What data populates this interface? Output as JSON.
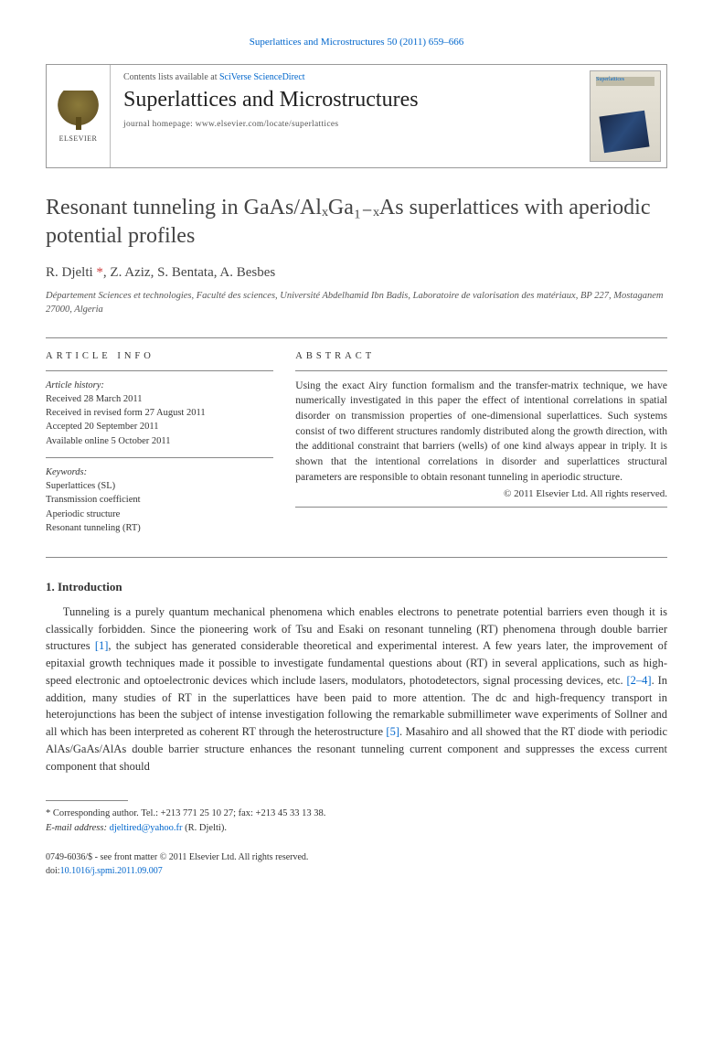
{
  "header": {
    "citation": "Superlattices and Microstructures 50 (2011) 659–666"
  },
  "banner": {
    "publisher_label": "ELSEVIER",
    "contents_prefix": "Contents lists available at ",
    "contents_link": "SciVerse ScienceDirect",
    "journal_name": "Superlattices and Microstructures",
    "homepage_line": "journal homepage: www.elsevier.com/locate/superlattices",
    "cover_thumb_text": "Superlattices"
  },
  "article": {
    "title_html": "Resonant tunneling in GaAs/AlₓGa₁₋ₓAs superlattices with aperiodic potential profiles",
    "authors_line": "R. Djelti *, Z. Aziz, S. Bentata, A. Besbes",
    "affiliation": "Département Sciences et technologies, Faculté des sciences, Université Abdelhamid Ibn Badis, Laboratoire de valorisation des matériaux, BP 227, Mostaganem 27000, Algeria"
  },
  "article_info": {
    "heading": "ARTICLE INFO",
    "history_label": "Article history:",
    "received": "Received 28 March 2011",
    "revised": "Received in revised form 27 August 2011",
    "accepted": "Accepted 20 September 2011",
    "online": "Available online 5 October 2011",
    "keywords_label": "Keywords:",
    "keywords": [
      "Superlattices (SL)",
      "Transmission coefficient",
      "Aperiodic structure",
      "Resonant tunneling (RT)"
    ]
  },
  "abstract": {
    "heading": "ABSTRACT",
    "text": "Using the exact Airy function formalism and the transfer-matrix technique, we have numerically investigated in this paper the effect of intentional correlations in spatial disorder on transmission properties of one-dimensional superlattices. Such systems consist of two different structures randomly distributed along the growth direction, with the additional constraint that barriers (wells) of one kind always appear in triply. It is shown that the intentional correlations in disorder and superlattices structural parameters are responsible to obtain resonant tunneling in aperiodic structure.",
    "copyright": "© 2011 Elsevier Ltd. All rights reserved."
  },
  "body": {
    "intro_heading": "1. Introduction",
    "intro_text_pre_ref1": "Tunneling is a purely quantum mechanical phenomena which enables electrons to penetrate potential barriers even though it is classically forbidden. Since the pioneering work of Tsu and Esaki on resonant tunneling (RT) phenomena through double barrier structures ",
    "ref1": "[1]",
    "intro_text_mid1": ", the subject has generated considerable theoretical and experimental interest. A few years later, the improvement of epitaxial growth techniques made it possible to investigate fundamental questions about (RT) in several applications, such as high-speed electronic and optoelectronic devices which include lasers, modulators, photodetectors, signal processing devices, etc. ",
    "ref2": "[2–4]",
    "intro_text_mid2": ". In addition, many studies of RT in the superlattices have been paid to more attention. The dc and high-frequency transport in heterojunctions has been the subject of intense investigation following the remarkable submillimeter wave experiments of Sollner and all which has been interpreted as coherent RT through the heterostructure ",
    "ref3": "[5]",
    "intro_text_end": ". Masahiro and all showed that the RT diode with periodic AlAs/GaAs/AlAs double barrier structure enhances the resonant tunneling current component and suppresses the excess current component that should"
  },
  "footnote": {
    "corr_label": "* Corresponding author. Tel.: +213 771 25 10 27; fax: +213 45 33 13 38.",
    "email_label": "E-mail address:",
    "email": "djeltired@yahoo.fr",
    "email_author": " (R. Djelti)."
  },
  "footer": {
    "front_matter": "0749-6036/$ - see front matter © 2011 Elsevier Ltd. All rights reserved.",
    "doi_label": "doi:",
    "doi": "10.1016/j.spmi.2011.09.007"
  },
  "colors": {
    "link": "#0066cc",
    "text": "#333333",
    "corr": "#d04040"
  }
}
